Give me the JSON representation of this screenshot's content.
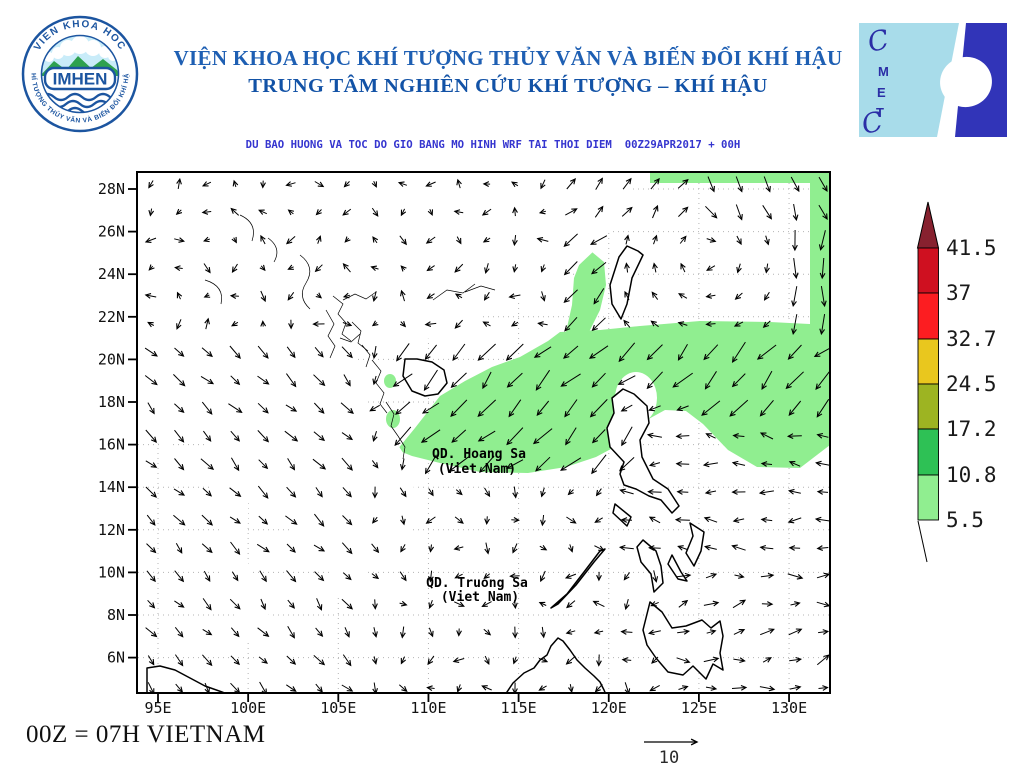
{
  "header": {
    "institute_line1": "VIỆN KHOA HỌC KHÍ TƯỢNG THỦY VĂN VÀ BIẾN ĐỔI KHÍ HẬU",
    "institute_line2": "TRUNG TÂM NGHIÊN CỨU KHÍ TƯỢNG – KHÍ HẬU",
    "subtitle": "DU BAO HUONG VA TOC DO GIO BANG MO HINH WRF TAI THOI DIEM  00Z29APR2017 + 00H"
  },
  "imhen_logo": {
    "ring_top": "VIEN KHOA HOC",
    "ring_bottom": "KHÍ TƯỢNG THỦY VĂN VÀ BIẾN ĐỔI KHÍ HẬU",
    "center_text": "IMHEN"
  },
  "cmetc_logo": {
    "letters": [
      "C",
      "M",
      "E",
      "T",
      "C"
    ]
  },
  "chart_data": {
    "type": "wind-vector-map",
    "title": "DU BAO HUONG VA TOC DO GIO BANG MO HINH WRF TAI THOI DIEM  00Z29APR2017 + 00H",
    "lat_ticks": [
      "28N",
      "26N",
      "24N",
      "22N",
      "20N",
      "18N",
      "16N",
      "14N",
      "12N",
      "10N",
      "8N",
      "6N"
    ],
    "lon_ticks": [
      "95E",
      "100E",
      "105E",
      "110E",
      "115E",
      "120E",
      "125E",
      "130E"
    ],
    "legend_values": [
      41.5,
      37,
      32.7,
      24.5,
      17.2,
      10.8,
      5.5
    ],
    "legend_colors_top_to_bottom": [
      "#87212f",
      "#cf1020",
      "#fc1d21",
      "#e9c71e",
      "#9db422",
      "#2ec155",
      "#90ee90"
    ],
    "shaded_region_speed_range": "5.5-10.8",
    "reference_vector_value": 10,
    "annotations": [
      "QD. Hoang Sa (Viet Nam)",
      "QD. Truong Sa (Viet Nam)"
    ]
  },
  "map": {
    "annotations": [
      {
        "line1": "QD. Hoang Sa",
        "line2": "(Viet Nam)"
      },
      {
        "line1": "QD. Truong Sa",
        "line2": "(Viet Nam)"
      }
    ]
  },
  "legend": {
    "values": [
      "41.5",
      "37",
      "32.7",
      "24.5",
      "17.2",
      "10.8",
      "5.5"
    ],
    "triangle_color": "#87212f",
    "band_colors": [
      "#cf1020",
      "#fc1d21",
      "#e9c71e",
      "#9db422",
      "#2ec155",
      "#90ee90"
    ]
  },
  "footer": {
    "time_note": "00Z = 07H VIETNAM",
    "reference_arrow_label": "10"
  },
  "colors": {
    "shaded_green": "#90ee90",
    "title_blue": "#1e5fb3",
    "subtitle_blue": "#3535cf",
    "cmetc_light": "#a8dcea",
    "cmetc_dark": "#3134b8",
    "imhen_blue": "#1c55a0"
  }
}
